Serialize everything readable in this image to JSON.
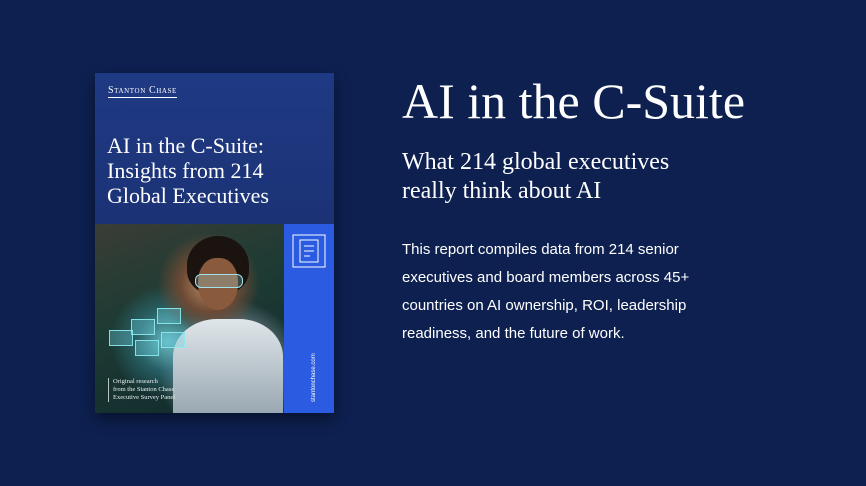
{
  "cover": {
    "brand": "Stanton Chase",
    "title": "AI in the C-Suite:\nInsights from 214\nGlobal Executives",
    "caption": "Original research\nfrom the Stanton Chase\nExecutive Survey Panel",
    "url": "stantonchase.com",
    "icon": "document-icon"
  },
  "headline": "AI in the C-Suite",
  "subheadline": "What 214 global executives\nreally think about AI",
  "description": "This report compiles data from 214 senior\nexecutives and board members across 45+\ncountries on AI ownership, ROI, leadership\nreadiness, and the future of work.",
  "colors": {
    "background": "#0d2050",
    "cover_blue": "#1f3a84",
    "accent_blue": "#2a5be0",
    "text": "#ffffff"
  }
}
